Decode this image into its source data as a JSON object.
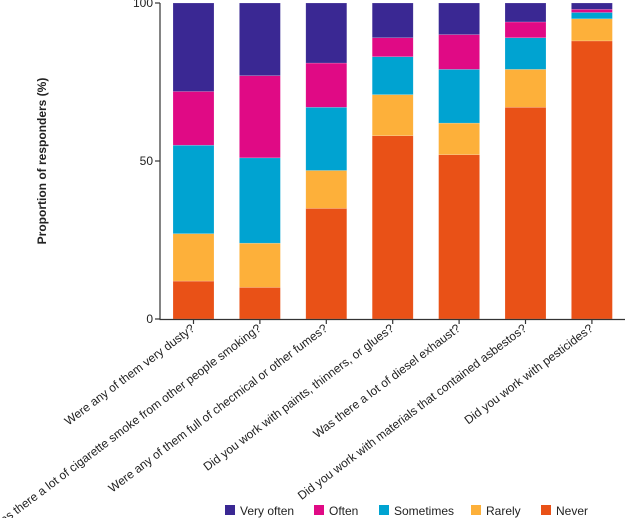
{
  "chart_data": {
    "type": "bar",
    "stacked": true,
    "title": "",
    "xlabel": "",
    "ylabel": "Proportion of responders (%)",
    "ylim": [
      0,
      100
    ],
    "yticks": [
      "0",
      "50",
      "100"
    ],
    "grid": false,
    "legend_placement": "bottom",
    "categories": [
      "Were any of them very dusty?",
      "Was there a lot of cigarette smoke from other people smoking?",
      "Were any of them full of checmical or other fumes?",
      "Did you work with paints, thinners, or glues?",
      "Was there a lot of diesel exhaust?",
      "Did you work with materials that contained asbestos?",
      "Did you work with pesticides?"
    ],
    "series": [
      {
        "name": "Never",
        "color": "#E95117",
        "values": [
          12,
          10,
          35,
          58,
          52,
          67,
          88
        ]
      },
      {
        "name": "Rarely",
        "color": "#FDB03A",
        "values": [
          15,
          14,
          12,
          13,
          10,
          12,
          7
        ]
      },
      {
        "name": "Sometimes",
        "color": "#00A3D1",
        "values": [
          28,
          27,
          20,
          12,
          17,
          10,
          2
        ]
      },
      {
        "name": "Often",
        "color": "#E00A85",
        "values": [
          17,
          26,
          14,
          6,
          11,
          5,
          1
        ]
      },
      {
        "name": "Very often",
        "color": "#3A2893",
        "values": [
          28,
          23,
          19,
          11,
          10,
          6,
          2
        ]
      }
    ],
    "legend_order": [
      "Very often",
      "Often",
      "Sometimes",
      "Rarely",
      "Never"
    ]
  }
}
